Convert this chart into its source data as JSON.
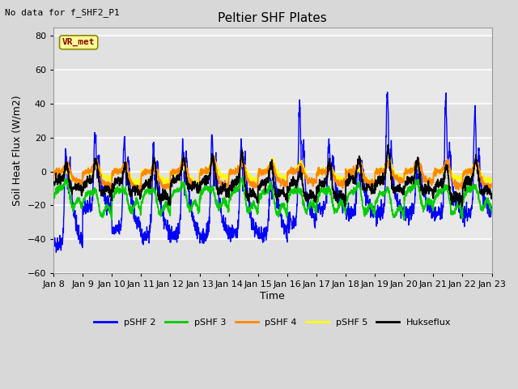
{
  "title": "Peltier SHF Plates",
  "no_data_text": "No data for f_SHF2_P1",
  "vr_met_label": "VR_met",
  "ylabel": "Soil Heat Flux (W/m2)",
  "xlabel": "Time",
  "ylim": [
    -60,
    85
  ],
  "yticks": [
    -60,
    -40,
    -20,
    0,
    20,
    40,
    60,
    80
  ],
  "x_labels": [
    "Jan 8",
    "Jan 9",
    "Jan 10",
    "Jan 11",
    "Jan 12",
    "Jan 13",
    "Jan 14",
    "Jan 15",
    "Jan 16",
    "Jan 17",
    "Jan 18",
    "Jan 19",
    "Jan 20",
    "Jan 21",
    "Jan 22",
    "Jan 23"
  ],
  "colors": {
    "pSHF2": "#0000FF",
    "pSHF3": "#00CC00",
    "pSHF4": "#FF8800",
    "pSHF5": "#FFFF00",
    "Hukseflux": "#000000"
  },
  "legend": [
    "pSHF 2",
    "pSHF 3",
    "pSHF 4",
    "pSHF 5",
    "Hukseflux"
  ],
  "bg_color": "#D8D8D8",
  "plot_bg": "#E8E8E8",
  "grid_color": "#FFFFFF",
  "num_days": 15,
  "seed": 42,
  "figsize": [
    6.4,
    4.8
  ],
  "dpi": 100
}
